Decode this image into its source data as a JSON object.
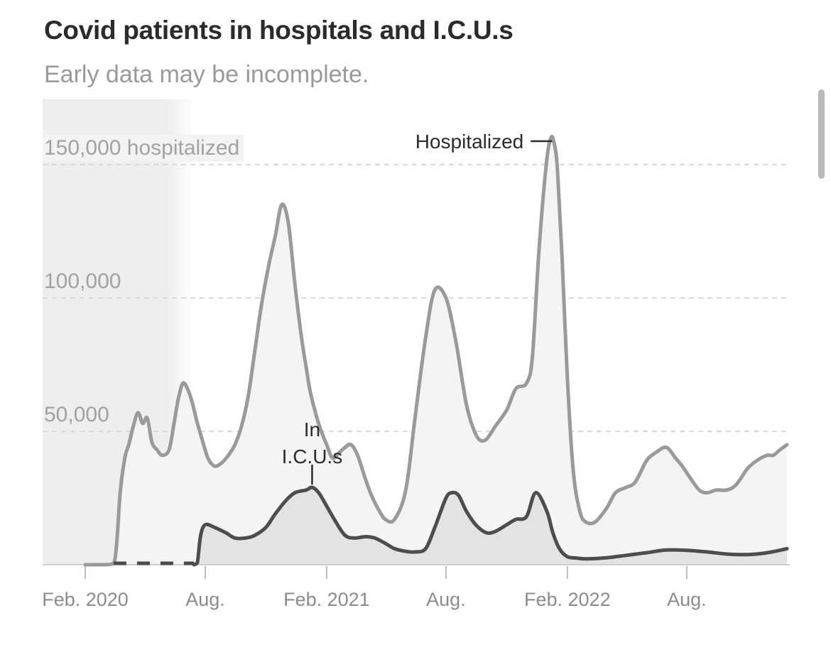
{
  "title": "Covid patients in hospitals and I.C.U.s",
  "subtitle": "Early data may be incomplete.",
  "colors": {
    "hospitalized_line": "#9a9a9a",
    "icu_line": "#4d4d4d",
    "hospitalized_fill": "#f4f4f4",
    "icu_fill": "#e3e3e3",
    "early_data_shade": "#eeeeee",
    "gridline": "#d9d9d9"
  },
  "chart_data": {
    "type": "area",
    "title": "Covid patients in hospitals and I.C.U.s",
    "subtitle": "Early data may be incomplete.",
    "xlabel": "",
    "ylabel": "",
    "xlim": [
      "2020-01-01",
      "2022-12-31"
    ],
    "ylim": [
      0,
      160000
    ],
    "grid": "horizontal dashed",
    "legend": "none (direct labels)",
    "y_ticks": [
      {
        "value": 150000,
        "label": "150,000 hospitalized"
      },
      {
        "value": 100000,
        "label": "100,000"
      },
      {
        "value": 50000,
        "label": "50,000"
      }
    ],
    "x_ticks": [
      {
        "date": "2020-02-01",
        "label": "Feb. 2020"
      },
      {
        "date": "2020-08-01",
        "label": "Aug."
      },
      {
        "date": "2021-02-01",
        "label": "Feb. 2021"
      },
      {
        "date": "2021-08-01",
        "label": "Aug."
      },
      {
        "date": "2022-02-01",
        "label": "Feb. 2022"
      },
      {
        "date": "2022-08-01",
        "label": "Aug."
      }
    ],
    "early_data_shaded_until": "2020-07-15",
    "series": [
      {
        "name": "Hospitalized",
        "x": [
          "2020-02-01",
          "2020-03-01",
          "2020-03-15",
          "2020-03-20",
          "2020-03-25",
          "2020-04-01",
          "2020-04-07",
          "2020-04-14",
          "2020-04-21",
          "2020-04-28",
          "2020-05-05",
          "2020-05-12",
          "2020-05-20",
          "2020-05-28",
          "2020-06-07",
          "2020-06-14",
          "2020-06-21",
          "2020-06-28",
          "2020-07-05",
          "2020-07-12",
          "2020-07-19",
          "2020-07-26",
          "2020-08-05",
          "2020-08-15",
          "2020-08-25",
          "2020-09-05",
          "2020-09-15",
          "2020-09-25",
          "2020-10-05",
          "2020-10-15",
          "2020-10-25",
          "2020-11-05",
          "2020-11-15",
          "2020-11-25",
          "2020-12-05",
          "2020-12-15",
          "2020-12-25",
          "2021-01-01",
          "2021-01-07",
          "2021-01-14",
          "2021-01-21",
          "2021-02-01",
          "2021-02-10",
          "2021-02-20",
          "2021-03-01",
          "2021-03-10",
          "2021-03-20",
          "2021-04-01",
          "2021-04-10",
          "2021-04-20",
          "2021-05-01",
          "2021-05-15",
          "2021-06-01",
          "2021-06-15",
          "2021-07-01",
          "2021-07-15",
          "2021-08-01",
          "2021-08-15",
          "2021-08-25",
          "2021-09-01",
          "2021-09-10",
          "2021-09-20",
          "2021-10-01",
          "2021-10-15",
          "2021-11-01",
          "2021-11-15",
          "2021-12-01",
          "2021-12-10",
          "2021-12-20",
          "2021-12-31",
          "2022-01-07",
          "2022-01-12",
          "2022-01-17",
          "2022-01-24",
          "2022-02-01",
          "2022-02-10",
          "2022-02-20",
          "2022-03-01",
          "2022-03-15",
          "2022-04-01",
          "2022-04-15",
          "2022-05-01",
          "2022-05-15",
          "2022-06-01",
          "2022-06-15",
          "2022-07-01",
          "2022-07-15",
          "2022-07-25",
          "2022-08-05",
          "2022-08-20",
          "2022-09-01",
          "2022-09-15",
          "2022-10-01",
          "2022-10-15",
          "2022-11-01",
          "2022-11-15",
          "2022-12-01",
          "2022-12-10",
          "2022-12-20",
          "2022-12-31"
        ],
        "values": [
          0,
          0,
          500,
          9000,
          27000,
          40000,
          45000,
          52000,
          57000,
          53000,
          55000,
          46000,
          43000,
          41000,
          43000,
          52000,
          62000,
          68000,
          66000,
          61000,
          54000,
          48000,
          40000,
          37000,
          38000,
          41000,
          45000,
          52000,
          63000,
          80000,
          97000,
          112000,
          123000,
          135000,
          128000,
          105000,
          85000,
          74000,
          65000,
          58000,
          52000,
          45000,
          40000,
          42000,
          44000,
          45000,
          41000,
          32000,
          26000,
          21000,
          17000,
          17000,
          28000,
          55000,
          85000,
          103000,
          100000,
          85000,
          70000,
          60000,
          52000,
          47000,
          47000,
          52000,
          58000,
          66000,
          68000,
          78000,
          118000,
          150000,
          160000,
          158000,
          148000,
          115000,
          70000,
          35000,
          20000,
          16000,
          16000,
          21000,
          27000,
          29000,
          31000,
          39000,
          42000,
          44000,
          40000,
          37000,
          33000,
          28000,
          27000,
          28000,
          28000,
          30000,
          36000,
          39000,
          41000,
          41000,
          43000,
          45000
        ]
      },
      {
        "name": "In I.C.U.s",
        "x": [
          "2020-02-01",
          "2020-03-15",
          "2020-05-01",
          "2020-06-01",
          "2020-07-15",
          "2020-07-20",
          "2020-07-25",
          "2020-08-01",
          "2020-08-15",
          "2020-09-01",
          "2020-09-15",
          "2020-10-01",
          "2020-10-15",
          "2020-11-01",
          "2020-11-15",
          "2020-12-01",
          "2020-12-15",
          "2021-01-01",
          "2021-01-10",
          "2021-01-20",
          "2021-02-01",
          "2021-02-15",
          "2021-03-01",
          "2021-03-15",
          "2021-04-01",
          "2021-04-15",
          "2021-05-01",
          "2021-05-15",
          "2021-06-01",
          "2021-06-15",
          "2021-07-01",
          "2021-07-15",
          "2021-08-01",
          "2021-08-10",
          "2021-08-20",
          "2021-09-01",
          "2021-09-15",
          "2021-10-01",
          "2021-10-15",
          "2021-11-01",
          "2021-11-15",
          "2021-12-01",
          "2021-12-15",
          "2022-01-01",
          "2022-01-10",
          "2022-01-20",
          "2022-02-01",
          "2022-02-15",
          "2022-03-01",
          "2022-04-01",
          "2022-05-01",
          "2022-06-01",
          "2022-07-01",
          "2022-08-01",
          "2022-09-01",
          "2022-10-01",
          "2022-11-01",
          "2022-12-01",
          "2022-12-31"
        ],
        "values": [
          0,
          0,
          0,
          0,
          0,
          800,
          11000,
          15000,
          14000,
          12000,
          10000,
          10000,
          11000,
          14000,
          19000,
          24000,
          27000,
          28000,
          29000,
          27000,
          22000,
          16000,
          11000,
          10000,
          10500,
          10000,
          8000,
          6000,
          5000,
          4800,
          6000,
          14000,
          25000,
          27000,
          26000,
          20000,
          15000,
          12000,
          12500,
          15000,
          17000,
          18000,
          27000,
          20000,
          12000,
          6000,
          3000,
          2500,
          2200,
          2600,
          3500,
          4500,
          5500,
          5400,
          4800,
          4000,
          3800,
          4500,
          6000
        ],
        "dashed_until": "2020-07-15"
      }
    ],
    "annotations": [
      {
        "series": "Hospitalized",
        "label": "Hospitalized",
        "x": "2022-01-12"
      },
      {
        "series": "In I.C.U.s",
        "label_lines": [
          "In",
          "I.C.U.s"
        ],
        "x": "2021-01-10"
      }
    ]
  }
}
